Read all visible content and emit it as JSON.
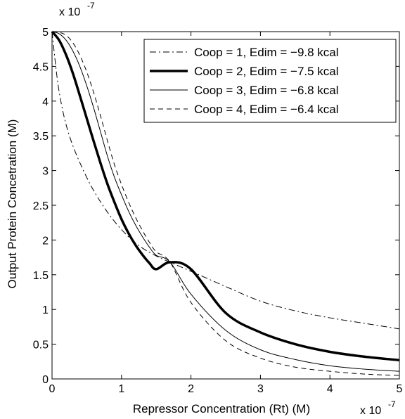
{
  "chart_data": {
    "type": "line",
    "title": "",
    "xlabel": "Repressor Concentration (Rt) (M)",
    "ylabel": "Output Protein Concetration (M)",
    "x_exponent": {
      "base": "x 10",
      "power": "-7"
    },
    "y_exponent": {
      "base": "x 10",
      "power": "-7"
    },
    "xlim": [
      0,
      5
    ],
    "ylim": [
      0,
      5
    ],
    "x_ticks": [
      0,
      1,
      2,
      3,
      4,
      5
    ],
    "y_ticks": [
      0,
      0.5,
      1,
      1.5,
      2,
      2.5,
      3,
      3.5,
      4,
      4.5,
      5
    ],
    "x_tick_labels": [
      "0",
      "1",
      "2",
      "3",
      "4",
      "5"
    ],
    "y_tick_labels": [
      "0",
      "0.5",
      "1",
      "1.5",
      "2",
      "2.5",
      "3",
      "3.5",
      "4",
      "4.5",
      "5"
    ],
    "grid": false,
    "legend_position": "top-right",
    "series": [
      {
        "name": "Coop = 1, Edim = −9.8 kcal",
        "style": "dash-dot",
        "width": "thin",
        "x": [
          0,
          0.1,
          0.25,
          0.5,
          0.75,
          1.0,
          1.25,
          1.5,
          1.7,
          2.0,
          2.5,
          3.0,
          3.5,
          4.0,
          4.5,
          5.0
        ],
        "y": [
          5.0,
          4.15,
          3.5,
          2.9,
          2.47,
          2.15,
          1.92,
          1.77,
          1.68,
          1.55,
          1.33,
          1.12,
          0.98,
          0.88,
          0.8,
          0.72
        ]
      },
      {
        "name": "Coop = 2, Edim = −7.5 kcal",
        "style": "solid",
        "width": "thick",
        "x": [
          0,
          0.1,
          0.2,
          0.3,
          0.4,
          0.5,
          0.6,
          0.7,
          0.8,
          0.9,
          1.0,
          1.1,
          1.2,
          1.3,
          1.4,
          1.5,
          1.7,
          2.0,
          2.5,
          3.0,
          3.5,
          4.0,
          4.5,
          5.0
        ],
        "y": [
          5.0,
          4.88,
          4.67,
          4.4,
          4.08,
          3.75,
          3.42,
          3.1,
          2.8,
          2.54,
          2.3,
          2.1,
          1.93,
          1.79,
          1.67,
          1.58,
          1.68,
          1.58,
          0.95,
          0.67,
          0.5,
          0.39,
          0.32,
          0.27
        ]
      },
      {
        "name": "Coop = 3, Edim = −6.8 kcal",
        "style": "solid",
        "width": "thin",
        "x": [
          0,
          0.1,
          0.2,
          0.3,
          0.4,
          0.5,
          0.6,
          0.7,
          0.8,
          0.9,
          1.0,
          1.1,
          1.2,
          1.3,
          1.4,
          1.5,
          1.7,
          2.0,
          2.5,
          3.0,
          3.5,
          4.0,
          4.5,
          5.0
        ],
        "y": [
          5.0,
          4.97,
          4.88,
          4.72,
          4.5,
          4.22,
          3.9,
          3.55,
          3.2,
          2.9,
          2.65,
          2.42,
          2.22,
          2.05,
          1.9,
          1.78,
          1.68,
          1.22,
          0.7,
          0.42,
          0.28,
          0.19,
          0.14,
          0.11
        ]
      },
      {
        "name": "Coop = 4, Edim = −6.4 kcal",
        "style": "dashed",
        "width": "thin",
        "x": [
          0,
          0.1,
          0.2,
          0.3,
          0.4,
          0.5,
          0.6,
          0.7,
          0.8,
          0.9,
          1.0,
          1.1,
          1.2,
          1.3,
          1.4,
          1.5,
          1.7,
          2.0,
          2.5,
          3.0,
          3.5,
          4.0,
          4.5,
          5.0
        ],
        "y": [
          5.0,
          4.99,
          4.95,
          4.84,
          4.66,
          4.42,
          4.12,
          3.78,
          3.42,
          3.08,
          2.8,
          2.55,
          2.33,
          2.14,
          1.97,
          1.83,
          1.68,
          1.1,
          0.55,
          0.3,
          0.17,
          0.11,
          0.07,
          0.05
        ]
      }
    ]
  }
}
